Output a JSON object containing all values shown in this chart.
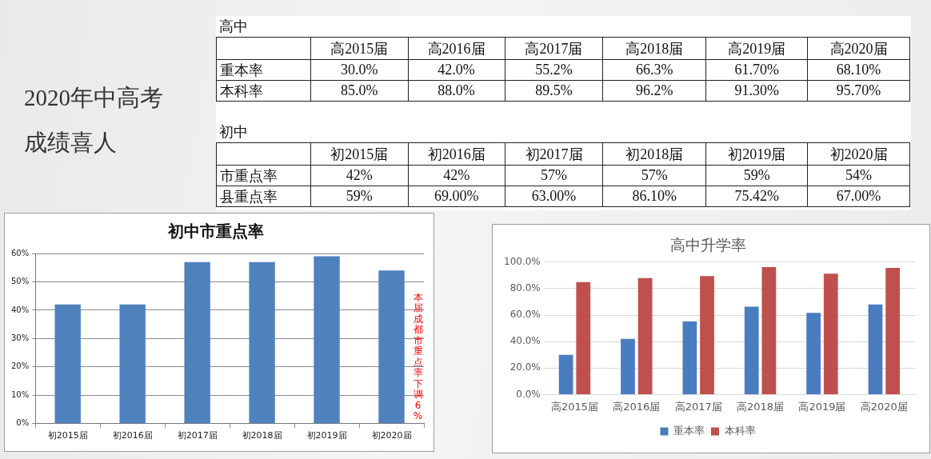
{
  "chart_data": [
    {
      "type": "other",
      "annotations": [
        "2020年中高考",
        "成绩喜人"
      ]
    },
    {
      "type": "heatmap",
      "title": "高中",
      "categories": [
        "高2015届",
        "高2016届",
        "高2017届",
        "高2018届",
        "高2019届",
        "高2020届"
      ],
      "y_categories": [
        "重本率",
        "本科率"
      ],
      "cells": [
        [
          30.0,
          42.0,
          55.2,
          66.3,
          61.7,
          68.1
        ],
        [
          85.0,
          88.0,
          89.5,
          96.2,
          91.3,
          95.7
        ]
      ],
      "cell_labels": [
        [
          "30.0%",
          "42.0%",
          "55.2%",
          "66.3%",
          "61.70%",
          "68.10%"
        ],
        [
          "85.0%",
          "88.0%",
          "89.5%",
          "96.2%",
          "91.30%",
          "95.70%"
        ]
      ]
    },
    {
      "type": "heatmap",
      "title": "初中",
      "categories": [
        "初2015届",
        "初2016届",
        "初2017届",
        "初2018届",
        "初2019届",
        "初2020届"
      ],
      "y_categories": [
        "市重点率",
        "县重点率"
      ],
      "cells": [
        [
          42,
          42,
          57,
          57,
          59,
          54
        ],
        [
          59,
          69.0,
          63.0,
          86.1,
          75.42,
          67.0
        ]
      ],
      "cell_labels": [
        [
          "42%",
          "42%",
          "57%",
          "57%",
          "59%",
          "54%"
        ],
        [
          "59%",
          "69.00%",
          "63.00%",
          "86.10%",
          "75.42%",
          "67.00%"
        ]
      ]
    },
    {
      "type": "bar",
      "title": "初中市重点率",
      "categories": [
        "初2015届",
        "初2016届",
        "初2017届",
        "初2018届",
        "初2019届",
        "初2020届"
      ],
      "values": [
        42,
        42,
        57,
        57,
        59,
        54
      ],
      "color": "#4f81bd",
      "ylim": [
        0,
        60
      ],
      "yticks": [
        {
          "value": 0,
          "label": "0%"
        },
        {
          "value": 10,
          "label": "10%"
        },
        {
          "value": 20,
          "label": "20%"
        },
        {
          "value": 30,
          "label": "30%"
        },
        {
          "value": 40,
          "label": "40%"
        },
        {
          "value": 50,
          "label": "50%"
        },
        {
          "value": 60,
          "label": "60%"
        }
      ],
      "grid": "y",
      "annotations": [
        "本届成都市重点率下调6%"
      ]
    },
    {
      "type": "bar",
      "title": "高中升学率",
      "categories": [
        "高2015届",
        "高2016届",
        "高2017届",
        "高2018届",
        "高2019届",
        "高2020届"
      ],
      "series": [
        {
          "name": "重本率",
          "color": "#4a7dc0",
          "values": [
            30.0,
            42.0,
            55.2,
            66.3,
            61.7,
            68.1
          ]
        },
        {
          "name": "本科率",
          "color": "#c0504d",
          "values": [
            85.0,
            88.0,
            89.5,
            96.2,
            91.3,
            95.7
          ]
        }
      ],
      "ylim": [
        0,
        100
      ],
      "yticks": [
        {
          "value": 0,
          "label": "0.0%"
        },
        {
          "value": 20,
          "label": "20.0%"
        },
        {
          "value": 40,
          "label": "40.0%"
        },
        {
          "value": 60,
          "label": "60.0%"
        },
        {
          "value": 80,
          "label": "80.0%"
        },
        {
          "value": 100,
          "label": "100.0%"
        }
      ],
      "grid": "y",
      "legend": "bottom"
    }
  ]
}
